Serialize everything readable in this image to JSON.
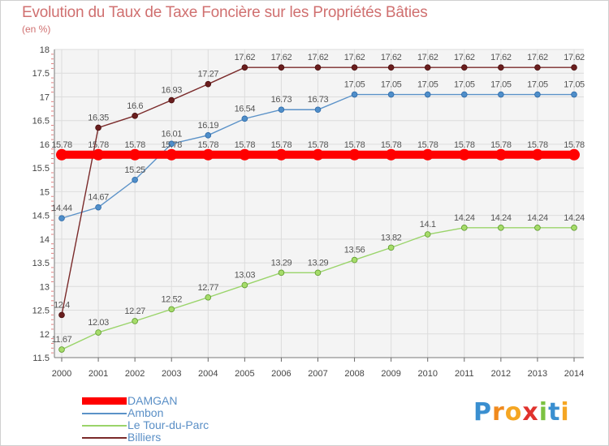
{
  "chart_data": {
    "type": "line",
    "title": "Evolution du Taux de Taxe Foncière sur les Propriétés Bâties",
    "ylabel": "(en %)",
    "xlabel": "",
    "x": [
      "2000",
      "2001",
      "2002",
      "2003",
      "2004",
      "2005",
      "2006",
      "2007",
      "2008",
      "2009",
      "2010",
      "2011",
      "2012",
      "2013",
      "2014"
    ],
    "ylim": [
      11.5,
      18
    ],
    "yticks": [
      "11.5",
      "12",
      "12.5",
      "13",
      "13.5",
      "14",
      "14.5",
      "15",
      "15.5",
      "16",
      "16.5",
      "17",
      "17.5",
      "18"
    ],
    "grid": true,
    "series": [
      {
        "name": "DAMGAN",
        "color": "#ff0000",
        "values": [
          15.78,
          15.78,
          15.78,
          15.78,
          15.78,
          15.78,
          15.78,
          15.78,
          15.78,
          15.78,
          15.78,
          15.78,
          15.78,
          15.78,
          15.78
        ],
        "labels": [
          "15.78",
          "15.78",
          "15.78",
          "15.78",
          "15.78",
          "15.78",
          "15.78",
          "15.78",
          "15.78",
          "15.78",
          "15.78",
          "15.78",
          "15.78",
          "15.78",
          "15.78"
        ]
      },
      {
        "name": "Ambon",
        "color": "#5b92c8",
        "values": [
          14.44,
          14.67,
          15.25,
          16.01,
          16.19,
          16.54,
          16.73,
          16.73,
          17.05,
          17.05,
          17.05,
          17.05,
          17.05,
          17.05,
          17.05
        ],
        "labels": [
          "14.44",
          "14.67",
          "15.25",
          "16.01",
          "16.19",
          "16.54",
          "16.73",
          "16.73",
          "17.05",
          "17.05",
          "17.05",
          "17.05",
          "17.05",
          "17.05",
          "17.05"
        ]
      },
      {
        "name": "Le Tour-du-Parc",
        "color": "#9ad46a",
        "values": [
          11.67,
          12.03,
          12.27,
          12.52,
          12.77,
          13.03,
          13.29,
          13.29,
          13.56,
          13.82,
          14.1,
          14.24,
          14.24,
          14.24,
          14.24
        ],
        "labels": [
          "11.67",
          "12.03",
          "12.27",
          "12.52",
          "12.77",
          "13.03",
          "13.29",
          "13.29",
          "13.56",
          "13.82",
          "14.1",
          "14.24",
          "14.24",
          "14.24",
          "14.24"
        ]
      },
      {
        "name": "Billiers",
        "color": "#7a2a2a",
        "values": [
          12.4,
          16.35,
          16.6,
          16.93,
          17.27,
          17.62,
          17.62,
          17.62,
          17.62,
          17.62,
          17.62,
          17.62,
          17.62,
          17.62,
          17.62
        ],
        "labels": [
          "12.4",
          "16.35",
          "16.6",
          "16.93",
          "17.27",
          "17.62",
          "17.62",
          "17.62",
          "17.62",
          "17.62",
          "17.62",
          "17.62",
          "17.62",
          "17.62",
          "17.62"
        ]
      }
    ]
  },
  "logo": {
    "text": "Proxiti",
    "letters": [
      "P",
      "r",
      "o",
      "x",
      "i",
      "t",
      "i"
    ]
  }
}
